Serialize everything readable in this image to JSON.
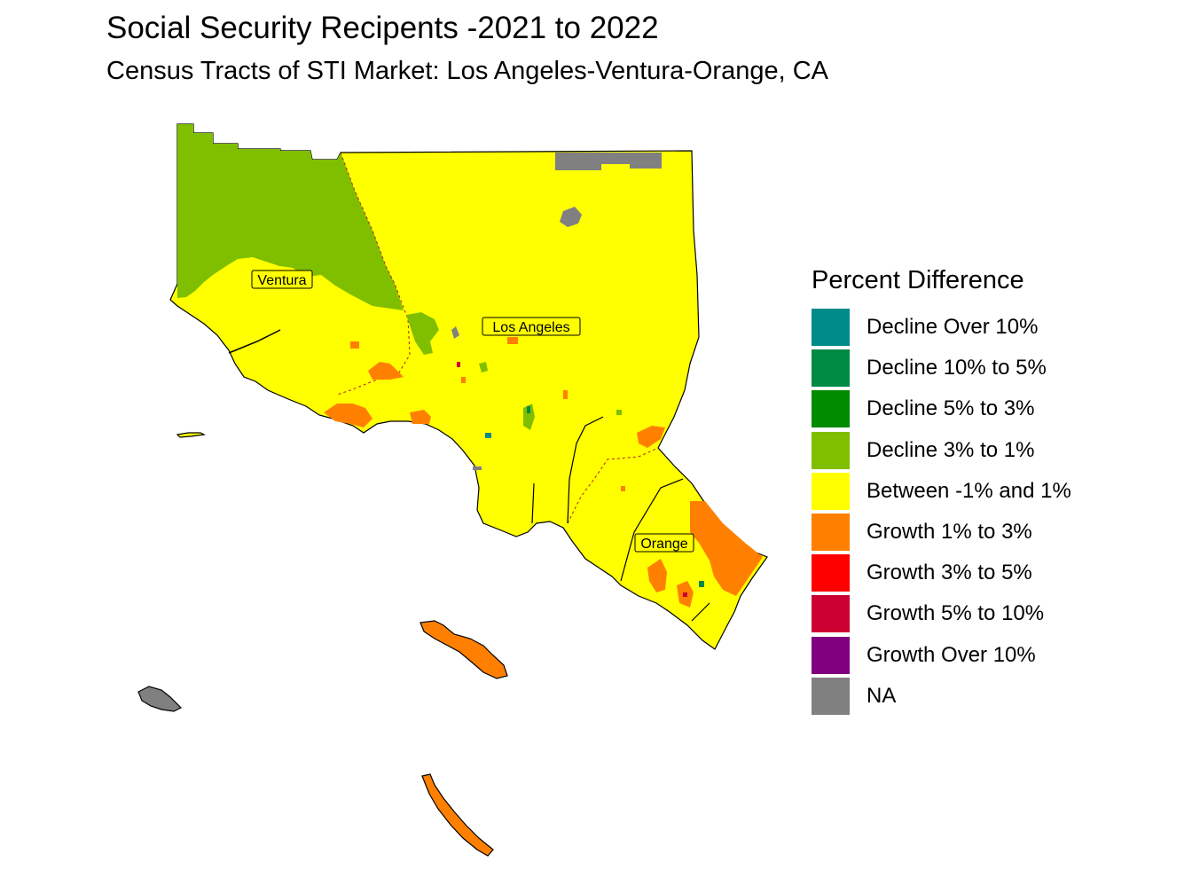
{
  "title": "Social Security Recipents -2021 to 2022",
  "subtitle": "Census Tracts of STI Market: Los Angeles-Ventura-Orange, CA",
  "legend": {
    "title": "Percent Difference",
    "items": [
      {
        "label": "Decline Over 10%",
        "color": "#008B8B"
      },
      {
        "label": "Decline 10% to 5%",
        "color": "#008B45"
      },
      {
        "label": "Decline 5% to 3%",
        "color": "#008B00"
      },
      {
        "label": "Decline 3% to 1%",
        "color": "#7FBF00"
      },
      {
        "label": "Between -1% and 1%",
        "color": "#FFFF00"
      },
      {
        "label": "Growth 1% to 3%",
        "color": "#FF8000"
      },
      {
        "label": "Growth 3% to 5%",
        "color": "#FF0000"
      },
      {
        "label": "Growth 5% to 10%",
        "color": "#CC0033"
      },
      {
        "label": "Growth Over 10%",
        "color": "#800080"
      },
      {
        "label": "NA",
        "color": "#808080"
      }
    ]
  },
  "counties": [
    {
      "name": "Ventura"
    },
    {
      "name": "Los Angeles"
    },
    {
      "name": "Orange"
    }
  ]
}
